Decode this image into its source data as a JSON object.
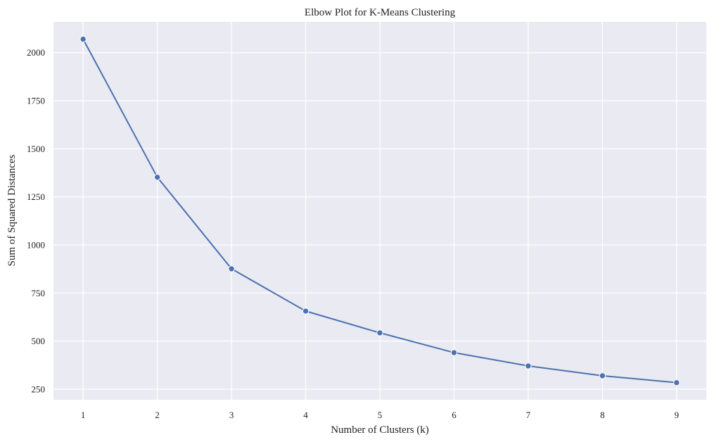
{
  "chart_data": {
    "type": "line",
    "title": "Elbow Plot for K-Means Clustering",
    "xlabel": "Number of Clusters (k)",
    "ylabel": "Sum of Squared Distances",
    "x": [
      1,
      2,
      3,
      4,
      5,
      6,
      7,
      8,
      9
    ],
    "xticks": [
      1,
      2,
      3,
      4,
      5,
      6,
      7,
      8,
      9
    ],
    "yticks": [
      250,
      500,
      750,
      1000,
      1250,
      1500,
      1750,
      2000
    ],
    "xlim": [
      0.6,
      9.4
    ],
    "ylim": [
      195,
      2160
    ],
    "series": [
      {
        "values": [
          2070,
          1352,
          876,
          656,
          543,
          440,
          371,
          320,
          284
        ]
      }
    ],
    "grid": true,
    "colors": {
      "background": "#eaeaf2",
      "grid": "#ffffff",
      "line": "#4c72b0"
    }
  }
}
